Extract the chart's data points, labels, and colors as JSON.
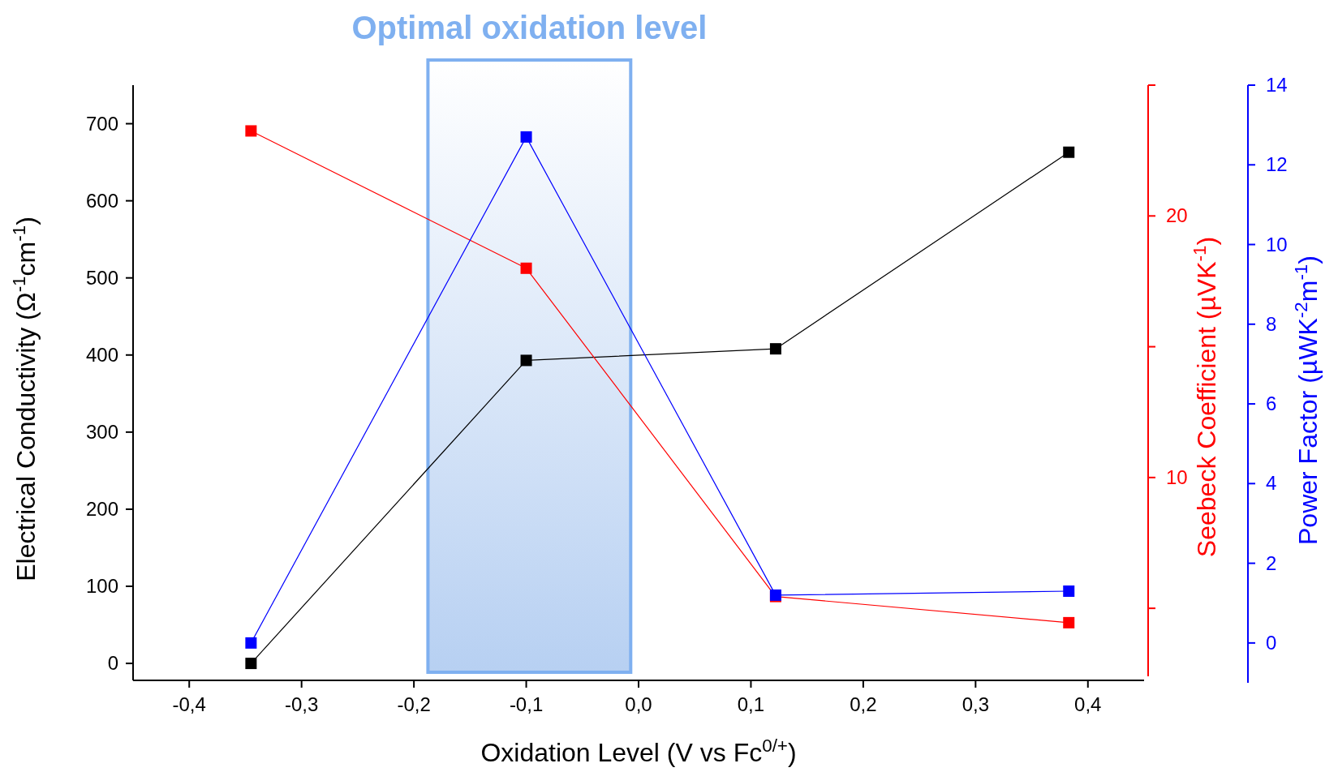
{
  "chart_data": {
    "type": "line",
    "xlabel": "Oxidation Level (V vs Fc$^{0/+}$)",
    "ylabel": "Electrical Conductivity (Ω$^{-1}$cm$^{-1}$)",
    "y2label": "Seebeck Coefficient (µVK$^{-1}$)",
    "y3label": "Power Factor (µWK$^{-2}$m$^{-1}$)",
    "x": [
      -0.345,
      -0.1,
      0.122,
      0.383
    ],
    "xlim": [
      -0.45,
      0.45
    ],
    "xticks": [
      {
        "value": -0.4,
        "label": "-0,4"
      },
      {
        "value": -0.3,
        "label": "-0,3"
      },
      {
        "value": -0.2,
        "label": "-0,2"
      },
      {
        "value": -0.1,
        "label": "-0,1"
      },
      {
        "value": 0,
        "label": "0,0"
      },
      {
        "value": 0.1,
        "label": "0,1"
      },
      {
        "value": 0.2,
        "label": "0,2"
      },
      {
        "value": 0.3,
        "label": "0,3"
      },
      {
        "value": 0.4,
        "label": "0,4"
      }
    ],
    "ylim": [
      -22,
      750
    ],
    "yticks": [
      0,
      100,
      200,
      300,
      400,
      500,
      600,
      700
    ],
    "y2lim": [
      2.4,
      25
    ],
    "y2ticks": [
      {
        "value": 5,
        "label": null
      },
      10,
      {
        "value": 15,
        "label": null
      },
      20,
      {
        "value": 25,
        "label": null
      }
    ],
    "y3lim": [
      -1,
      14
    ],
    "y3ticks": [
      0,
      2,
      4,
      6,
      8,
      10,
      12,
      14
    ],
    "series": [
      {
        "color": "#000000",
        "values": [
          0,
          393,
          408,
          663
        ]
      },
      {
        "color": "#ff0000",
        "axis": "y2",
        "values": [
          23.25,
          18.0,
          5.45,
          4.45
        ]
      },
      {
        "color": "#0000ff",
        "axis": "y3",
        "values": [
          0,
          12.7,
          1.2,
          1.3
        ]
      }
    ],
    "bands": [
      {
        "axis": "x",
        "from": -0.1875,
        "to": -0.007,
        "label": "Optimal oxidation level",
        "color": "#7fb0f0"
      }
    ],
    "marker": "square",
    "line_style": "solid"
  }
}
